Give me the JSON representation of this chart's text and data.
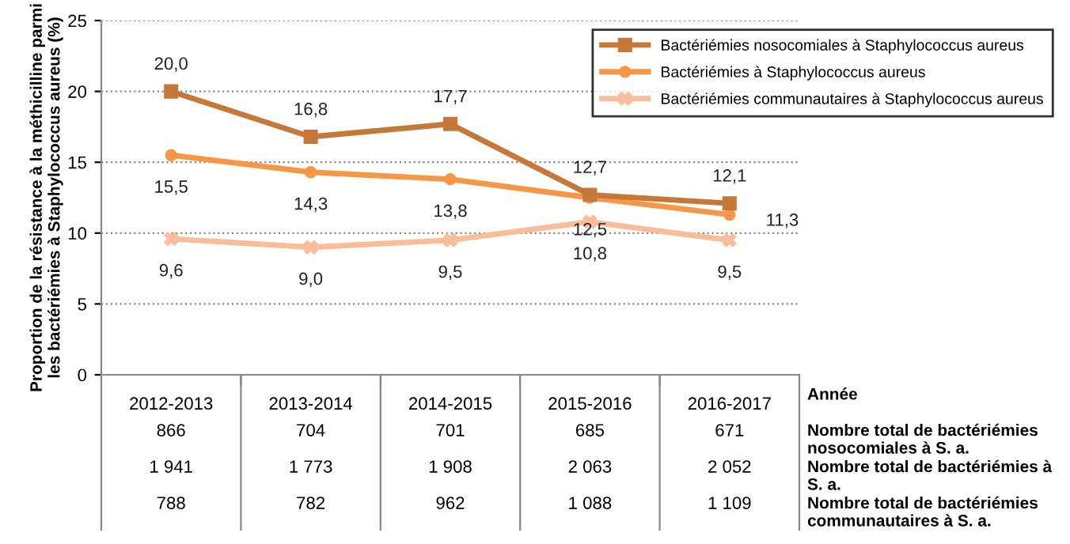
{
  "chart_data": {
    "type": "line",
    "ylabel": "Proportion de la résistance à la méthicilline parmi les bactériémies à Staphylococcus aureus (%)",
    "categories": [
      "2012-2013",
      "2013-2014",
      "2014-2015",
      "2015-2016",
      "2016-2017"
    ],
    "series": [
      {
        "name": "Bactériémies nosocomiales à Staphylococcus aureus",
        "color": "#c5783a",
        "marker": "square",
        "values": [
          20.0,
          16.8,
          17.7,
          12.7,
          12.1
        ],
        "value_labels": [
          "20,0",
          "16,8",
          "17,7",
          "12,7",
          "12,1"
        ]
      },
      {
        "name": "Bactériémies à Staphylococcus aureus",
        "color": "#f79646",
        "marker": "circle",
        "values": [
          15.5,
          14.3,
          13.8,
          12.5,
          11.3
        ],
        "value_labels": [
          "15,5",
          "14,3",
          "13,8",
          "12,5",
          "11,3"
        ]
      },
      {
        "name": "Bactériémies communautaires à Staphylococcus aureus",
        "color": "#f9bd9c",
        "marker": "cross",
        "values": [
          9.6,
          9.0,
          9.5,
          10.8,
          9.5
        ],
        "value_labels": [
          "9,6",
          "9,0",
          "9,5",
          "10,8",
          "9,5"
        ]
      }
    ],
    "ylim": [
      0,
      25
    ],
    "yticks": [
      0,
      5,
      10,
      15,
      20,
      25
    ],
    "grid": "y",
    "legend": "top right",
    "line_style": "solid",
    "annotations": [
      "Année",
      "Nombre total de bactériémies nosocomiales à S. a.",
      "866",
      "704",
      "701",
      "685",
      "671",
      "Nombre total de bactériémies à S. a.",
      "1 941",
      "1 773",
      "1 908",
      "2 063",
      "2 052",
      "Nombre total de bactériémies communautaires à S. a.",
      "788",
      "782",
      "962",
      "1 088",
      "1 109"
    ]
  }
}
